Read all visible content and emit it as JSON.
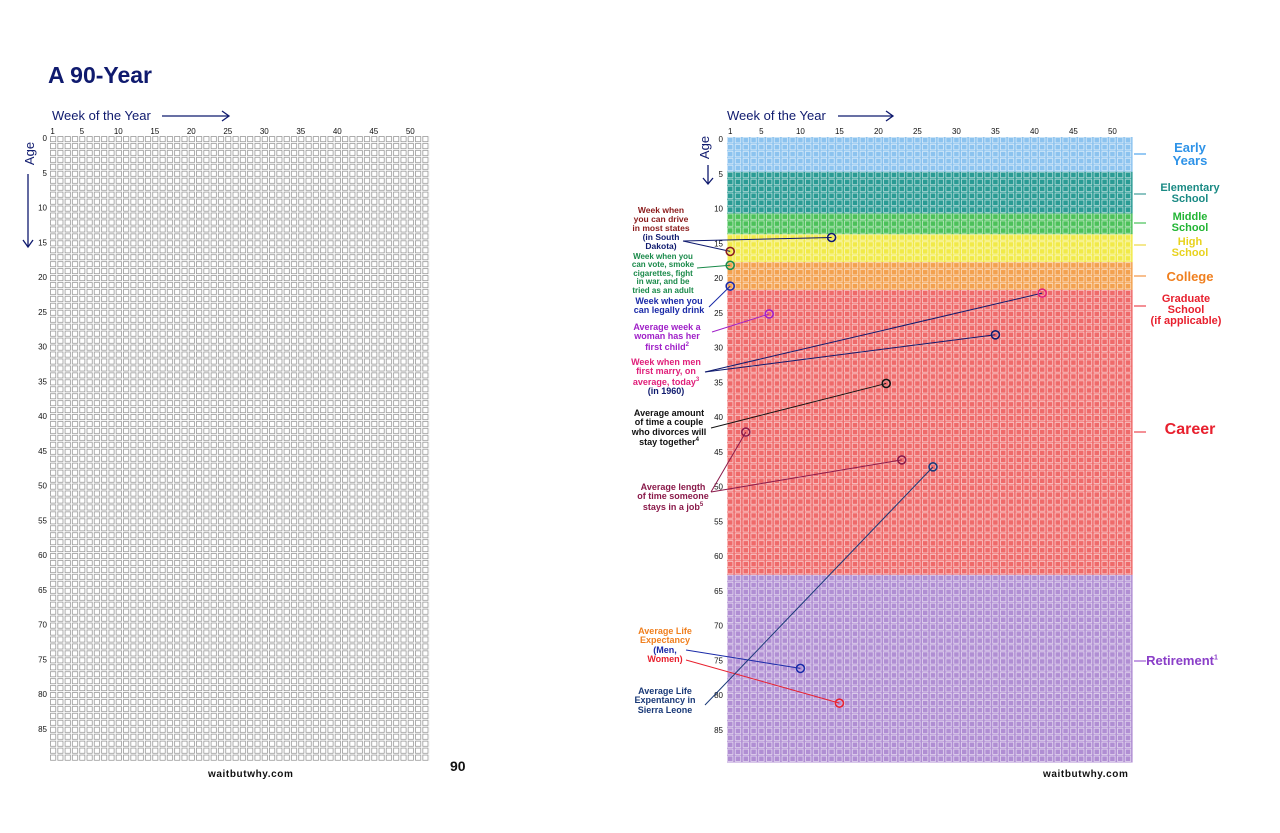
{
  "title": "A 90-Year",
  "left": {
    "week_axis_label": "Week of the Year",
    "age_axis_label": "Age",
    "week_ticks": [
      "1",
      "5",
      "10",
      "15",
      "20",
      "25",
      "30",
      "35",
      "40",
      "45",
      "50"
    ],
    "age_ticks": [
      "0",
      "5",
      "10",
      "15",
      "20",
      "25",
      "30",
      "35",
      "40",
      "45",
      "50",
      "55",
      "60",
      "65",
      "70",
      "75",
      "80",
      "85"
    ],
    "footer": "waitbutwhy.com",
    "page_number": "90"
  },
  "right": {
    "week_axis_label": "Week of the Year",
    "age_axis_label": "Age",
    "week_ticks": [
      "1",
      "5",
      "10",
      "15",
      "20",
      "25",
      "30",
      "35",
      "40",
      "45",
      "50"
    ],
    "age_ticks": [
      "0",
      "5",
      "10",
      "15",
      "20",
      "25",
      "30",
      "35",
      "40",
      "45",
      "50",
      "55",
      "60",
      "65",
      "70",
      "75",
      "80",
      "85"
    ],
    "footer": "waitbutwhy.com",
    "stages": [
      {
        "id": "early",
        "lines": [
          "Early",
          "Years"
        ],
        "color": "#2e93e8",
        "from_age": 0,
        "to_age": 5,
        "fill": "#8cc3ef"
      },
      {
        "id": "elementary",
        "lines": [
          "Elementary",
          "School"
        ],
        "color": "#1a8a84",
        "from_age": 5,
        "to_age": 11,
        "fill": "#2a9b94"
      },
      {
        "id": "middle",
        "lines": [
          "Middle",
          "School"
        ],
        "color": "#22b534",
        "from_age": 11,
        "to_age": 14,
        "fill": "#4cc15a"
      },
      {
        "id": "high",
        "lines": [
          "High",
          "School"
        ],
        "color": "#e8d21e",
        "from_age": 14,
        "to_age": 18,
        "fill": "#f1ea48"
      },
      {
        "id": "college",
        "lines": [
          "College"
        ],
        "color": "#f07f1e",
        "from_age": 18,
        "to_age": 22,
        "fill": "#f3a14f"
      },
      {
        "id": "graduate",
        "lines": [
          "Graduate",
          "School",
          "(if applicable)"
        ],
        "color": "#e8202e",
        "from_age": 22,
        "to_age": 22,
        "fill": "#ef6a6a"
      },
      {
        "id": "career",
        "lines": [
          "Career"
        ],
        "color": "#e8202e",
        "from_age": 22,
        "to_age": 63,
        "fill": "#ef6a6a"
      },
      {
        "id": "retirement",
        "lines": [
          "Retirement"
        ],
        "sup": "1",
        "color": "#8a3ec8",
        "from_age": 63,
        "to_age": 90,
        "fill": "#b08ed3"
      }
    ],
    "annotations": [
      {
        "id": "drive",
        "lines": [
          "Week when",
          "you can drive",
          "in most states"
        ],
        "lines2": [
          "(in South",
          "Dakota)"
        ],
        "color": "#8a1a1a",
        "color2": "#0f1a6e",
        "point_week": 14,
        "point_age": 14,
        "point2_week": 1,
        "point2_age": 16
      },
      {
        "id": "vote",
        "lines": [
          "Week when you",
          "can vote, smoke",
          "cigarettes, fight",
          "in war, and be",
          "tried as an adult"
        ],
        "color": "#1a8a4a",
        "point_week": 1,
        "point_age": 18
      },
      {
        "id": "drink",
        "lines": [
          "Week when you",
          "can legally drink"
        ],
        "color": "#1a2aa8",
        "point_week": 1,
        "point_age": 21
      },
      {
        "id": "first_child",
        "lines": [
          "Average week a",
          "woman has her",
          "first child"
        ],
        "sup": "2",
        "color": "#a020c8",
        "point_week": 6,
        "point_age": 25
      },
      {
        "id": "marry",
        "lines": [
          "Week when men",
          "first marry, on",
          "average, today"
        ],
        "lines2": [
          "(in 1960)"
        ],
        "sup": "3",
        "color": "#e0207a",
        "color2": "#0f1a6e",
        "point_week": 35,
        "point_age": 28,
        "point2_week": 41,
        "point2_age": 22
      },
      {
        "id": "divorce",
        "lines": [
          "Average amount",
          "of time a couple",
          "who divorces will",
          "stay together"
        ],
        "sup": "4",
        "color": "#111111",
        "point_week": 21,
        "point_age": 35
      },
      {
        "id": "job",
        "lines": [
          "Average length",
          "of time someone",
          "stays in a job"
        ],
        "sup": "5",
        "color": "#8a1a4a",
        "point_week": 3,
        "point_age": 42,
        "point2_week": 23,
        "point2_age": 46
      },
      {
        "id": "life_exp",
        "lines": [
          "Average Life",
          "Expectancy"
        ],
        "lines2": [
          "(Men,"
        ],
        "lines3": [
          "Women)"
        ],
        "color": "#f07f1e",
        "color2": "#1a2aa8",
        "color3": "#e8202e",
        "point_week": 10,
        "point_age": 76,
        "point2_week": 15,
        "point2_age": 81
      },
      {
        "id": "sierra",
        "lines": [
          "Average Life",
          "Expentancy in",
          "Sierra Leone"
        ],
        "color": "#1a3a78",
        "point_week": 27,
        "point_age": 47
      }
    ]
  },
  "colors": {
    "title": "#0f1a6e",
    "grid_box": "#8a8a8a"
  },
  "icons": {
    "week_arrow": "long-right-arrow",
    "age_arrow": "long-down-arrow"
  }
}
